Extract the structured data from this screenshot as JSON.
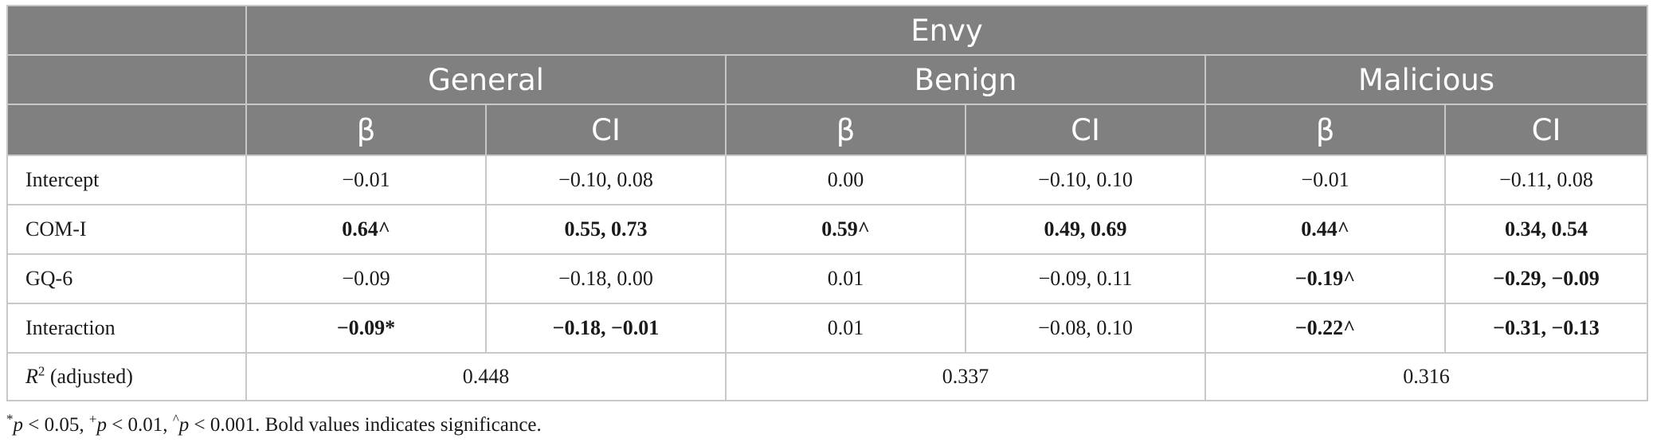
{
  "header": {
    "top": "Envy",
    "groups": [
      "General",
      "Benign",
      "Malicious"
    ],
    "sub": [
      "β",
      "CI",
      "β",
      "CI",
      "β",
      "CI"
    ]
  },
  "rows": [
    {
      "label": "Intercept",
      "cells": [
        "−0.01",
        "−0.10, 0.08",
        "0.00",
        "−0.10, 0.10",
        "−0.01",
        "−0.11, 0.08"
      ],
      "bold": [
        false,
        false,
        false,
        false,
        false,
        false
      ]
    },
    {
      "label": "COM-I",
      "cells": [
        "0.64^",
        "0.55, 0.73",
        "0.59^",
        "0.49, 0.69",
        "0.44^",
        "0.34, 0.54"
      ],
      "bold": [
        true,
        true,
        true,
        true,
        true,
        true
      ]
    },
    {
      "label": "GQ-6",
      "cells": [
        "−0.09",
        "−0.18, 0.00",
        "0.01",
        "−0.09, 0.11",
        "−0.19^",
        "−0.29, −0.09"
      ],
      "bold": [
        false,
        false,
        false,
        false,
        true,
        true
      ]
    },
    {
      "label": "Interaction",
      "cells": [
        "−0.09*",
        "−0.18, −0.01",
        "0.01",
        "−0.08, 0.10",
        "−0.22^",
        "−0.31, −0.13"
      ],
      "bold": [
        true,
        true,
        false,
        false,
        true,
        true
      ]
    }
  ],
  "r2_row": {
    "label_var": "R",
    "label_sup": "2",
    "label_rest": " (adjusted)",
    "values": [
      "0.448",
      "0.337",
      "0.316"
    ]
  },
  "footnote": {
    "s1": "*",
    "p": "p",
    "t1": " < 0.05, ",
    "s2": "+",
    "t2": " < 0.01, ",
    "s3": "^",
    "t3": " < 0.001. Bold values indicates significance."
  }
}
